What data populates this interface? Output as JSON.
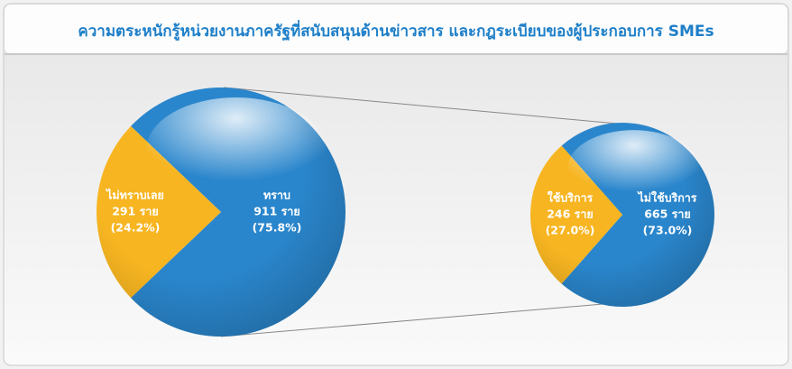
{
  "title": "ความตระหนักรู้หน่วยงานภาครัฐที่สนับสนุนด้านข่าวสาร และกฎระเบียบของผู้ประกอบการ SMEs",
  "chart_data": [
    {
      "type": "pie",
      "categories": [
        "ทราบ",
        "ไม่ทราบเลย"
      ],
      "values": [
        911,
        291
      ],
      "value_labels": [
        "911 ราย",
        "291 ราย"
      ],
      "percent_labels": [
        "(75.8%)",
        "(24.2%)"
      ],
      "colors": [
        "#2a86cc",
        "#f7b521"
      ]
    },
    {
      "type": "pie",
      "categories": [
        "ไม่ใช้บริการ",
        "ใช้บริการ"
      ],
      "values": [
        665,
        246
      ],
      "value_labels": [
        "665 ราย",
        "246 ราย"
      ],
      "percent_labels": [
        "(73.0%)",
        "(27.0%)"
      ],
      "colors": [
        "#2a86cc",
        "#f7b521"
      ]
    }
  ]
}
